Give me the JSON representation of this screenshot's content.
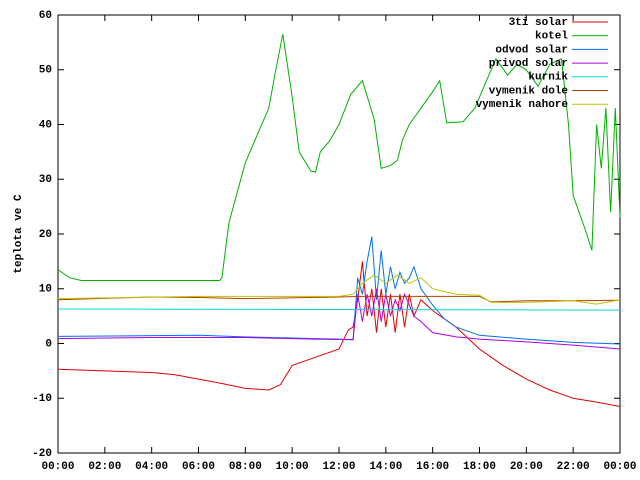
{
  "chart_data": {
    "type": "line",
    "y_label": "teplota ve C",
    "legend": "top-right",
    "xlim": [
      0,
      24
    ],
    "xticks": [
      {
        "value": 0,
        "label": "00:00"
      },
      {
        "value": 2,
        "label": "02:00"
      },
      {
        "value": 4,
        "label": "04:00"
      },
      {
        "value": 6,
        "label": "06:00"
      },
      {
        "value": 8,
        "label": "08:00"
      },
      {
        "value": 10,
        "label": "10:00"
      },
      {
        "value": 12,
        "label": "12:00"
      },
      {
        "value": 14,
        "label": "14:00"
      },
      {
        "value": 16,
        "label": "16:00"
      },
      {
        "value": 18,
        "label": "18:00"
      },
      {
        "value": 20,
        "label": "20:00"
      },
      {
        "value": 22,
        "label": "22:00"
      },
      {
        "value": 24,
        "label": "00:00"
      }
    ],
    "ylim": [
      -20,
      60
    ],
    "yticks": [
      -20,
      -10,
      0,
      10,
      20,
      30,
      40,
      50,
      60
    ],
    "series": [
      {
        "name": "3ti solar",
        "color": "#e00000",
        "x": [
          0,
          2,
          4,
          5,
          6,
          7,
          8,
          9,
          9.5,
          10,
          11,
          12,
          12.4,
          12.6,
          12.8,
          13,
          13.2,
          13.4,
          13.6,
          13.8,
          14,
          14.2,
          14.4,
          14.6,
          14.8,
          15,
          15.2,
          15.5,
          16,
          17,
          18,
          19,
          20,
          21,
          22,
          23,
          24
        ],
        "values": [
          -4.7,
          -5,
          -5.3,
          -5.7,
          -6.5,
          -7.3,
          -8.2,
          -8.5,
          -7.5,
          -4,
          -2.5,
          -1,
          2.5,
          3,
          8,
          15,
          5,
          10,
          2,
          10,
          3,
          9,
          2,
          9,
          3,
          9,
          5,
          8,
          6,
          3,
          -1,
          -4,
          -6.5,
          -8.5,
          -10,
          -10.7,
          -11.5
        ]
      },
      {
        "name": "kotel",
        "color": "#00b000",
        "x": [
          0,
          0.5,
          1,
          2,
          3,
          4,
          5,
          6,
          6.9,
          7,
          7.3,
          8,
          8.5,
          9,
          9.3,
          9.6,
          10,
          10.3,
          10.8,
          11,
          11.2,
          11.6,
          12,
          12.5,
          13,
          13.5,
          13.8,
          14.2,
          14.5,
          14.7,
          15,
          15.5,
          16,
          16.3,
          16.6,
          17.3,
          17.8,
          18.3,
          18.7,
          19.2,
          19.6,
          20,
          20.5,
          21,
          21.5,
          21.8,
          22,
          22.5,
          22.8,
          23,
          23.2,
          23.4,
          23.6,
          23.8,
          24
        ],
        "values": [
          13.5,
          12,
          11.5,
          11.5,
          11.5,
          11.5,
          11.5,
          11.5,
          11.5,
          12,
          22,
          33,
          38,
          43,
          50,
          56.5,
          45,
          35,
          31.5,
          31.3,
          35,
          37,
          40,
          45.5,
          48,
          41,
          32,
          32.5,
          33.5,
          37,
          40,
          43,
          46,
          48,
          40.3,
          40.5,
          43,
          48,
          52,
          49,
          51,
          50,
          47,
          51,
          52,
          40,
          27,
          21,
          17,
          40,
          32,
          43,
          24,
          43,
          23
        ]
      },
      {
        "name": "odvod solar",
        "color": "#0070f0",
        "x": [
          0,
          6,
          8,
          10,
          12,
          12.6,
          12.8,
          13,
          13.2,
          13.4,
          13.6,
          13.8,
          14,
          14.2,
          14.4,
          14.6,
          14.8,
          15,
          15.2,
          15.5,
          16,
          16.5,
          17,
          18,
          20,
          22,
          24
        ],
        "values": [
          1.3,
          1.5,
          1.2,
          1,
          0.8,
          0.7,
          12,
          9,
          15,
          19.5,
          8,
          17,
          9,
          14,
          10,
          13,
          11,
          12,
          14,
          10,
          7,
          4.5,
          3,
          1.5,
          0.8,
          0.2,
          -0.1
        ]
      },
      {
        "name": "privod solar",
        "color": "#b000e0",
        "x": [
          0,
          4,
          8,
          11,
          12.6,
          12.8,
          13,
          13.2,
          13.4,
          13.6,
          13.8,
          14,
          14.2,
          14.4,
          14.6,
          14.8,
          15.2,
          15.5,
          16,
          17,
          18,
          20,
          22,
          24
        ],
        "values": [
          0.9,
          1.1,
          1.1,
          0.8,
          0.7,
          9,
          4,
          9,
          5,
          10,
          4,
          9,
          5,
          8,
          6,
          9,
          5,
          4,
          2,
          1.2,
          0.8,
          0.3,
          -0.3,
          -1
        ]
      },
      {
        "name": "kurnik",
        "color": "#00d8d8",
        "x": [
          0,
          24
        ],
        "values": [
          6.3,
          6.1
        ]
      },
      {
        "name": "vymenik dole",
        "color": "#b04000",
        "x": [
          0,
          4,
          6,
          8,
          12,
          13,
          16,
          18,
          18.5,
          20,
          22,
          24
        ],
        "values": [
          8,
          8.5,
          8.4,
          8.2,
          8.5,
          8.6,
          8.6,
          8.6,
          7.6,
          7.8,
          7.8,
          7.9
        ]
      },
      {
        "name": "vymenik nahore",
        "color": "#c0c000",
        "x": [
          0,
          6,
          12,
          12.6,
          13,
          13.5,
          14,
          14.5,
          15,
          15.5,
          16,
          17,
          18,
          18.5,
          20,
          22,
          23,
          24
        ],
        "values": [
          8.2,
          8.6,
          8.6,
          9,
          11,
          12.5,
          11,
          12.5,
          11,
          12,
          10,
          9,
          8.8,
          7.5,
          7.5,
          7.8,
          7.2,
          8
        ]
      }
    ]
  }
}
